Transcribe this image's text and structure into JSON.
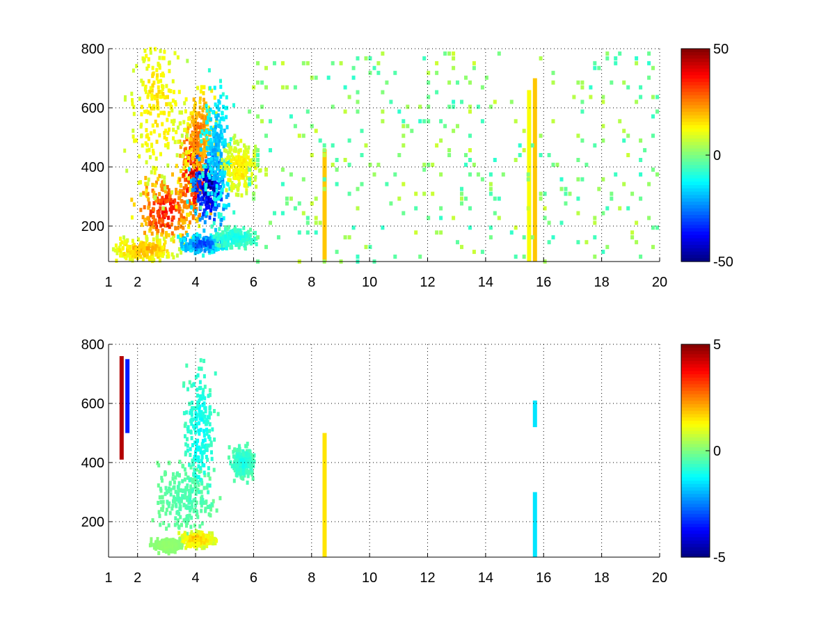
{
  "chart_data": [
    {
      "type": "heatmap",
      "title": "",
      "xlabel": "",
      "ylabel": "",
      "xlim": [
        1,
        20
      ],
      "ylim": [
        80,
        800
      ],
      "grid": true,
      "x_ticks": [
        1,
        2,
        4,
        6,
        8,
        10,
        12,
        14,
        16,
        18,
        20
      ],
      "y_ticks": [
        200,
        400,
        600,
        800
      ],
      "colormap": "jet",
      "colorbar": {
        "range": [
          -50,
          50
        ],
        "ticks": [
          -50,
          0,
          50
        ]
      },
      "features": [
        {
          "kind": "blob",
          "x": 2.9,
          "y": 250,
          "sx": 0.55,
          "sy": 60,
          "value": 35
        },
        {
          "kind": "blob",
          "x": 3.9,
          "y": 380,
          "sx": 0.3,
          "sy": 90,
          "value": 40
        },
        {
          "kind": "blob",
          "x": 4.1,
          "y": 500,
          "sx": 0.3,
          "sy": 110,
          "value": 25
        },
        {
          "kind": "blob",
          "x": 4.4,
          "y": 330,
          "sx": 0.35,
          "sy": 70,
          "value": -45
        },
        {
          "kind": "blob",
          "x": 4.7,
          "y": 450,
          "sx": 0.3,
          "sy": 130,
          "value": -20
        },
        {
          "kind": "blob",
          "x": 5.5,
          "y": 400,
          "sx": 0.35,
          "sy": 50,
          "value": 15
        },
        {
          "kind": "blob",
          "x": 2.6,
          "y": 600,
          "sx": 0.55,
          "sy": 170,
          "value": 15
        },
        {
          "kind": "blob",
          "x": 2.2,
          "y": 120,
          "sx": 0.6,
          "sy": 25,
          "value": 20
        },
        {
          "kind": "blob",
          "x": 4.2,
          "y": 140,
          "sx": 0.45,
          "sy": 18,
          "value": -30
        },
        {
          "kind": "blob",
          "x": 5.3,
          "y": 160,
          "sx": 0.4,
          "sy": 18,
          "value": -12
        },
        {
          "kind": "band",
          "x": 8.45,
          "y0": 80,
          "y1": 460,
          "value": 18
        },
        {
          "kind": "band",
          "x": 15.5,
          "y0": 80,
          "y1": 660,
          "value": 12
        },
        {
          "kind": "band",
          "x": 15.7,
          "y0": 80,
          "y1": 700,
          "value": 18
        },
        {
          "kind": "scatter",
          "x0": 5.8,
          "x1": 20,
          "density": 0.09,
          "value_range": [
            -8,
            8
          ]
        }
      ]
    },
    {
      "type": "heatmap",
      "title": "",
      "xlabel": "",
      "ylabel": "",
      "xlim": [
        1,
        20
      ],
      "ylim": [
        80,
        800
      ],
      "grid": true,
      "x_ticks": [
        1,
        2,
        4,
        6,
        8,
        10,
        12,
        14,
        16,
        18,
        20
      ],
      "y_ticks": [
        200,
        400,
        600,
        800
      ],
      "colormap": "jet",
      "colorbar": {
        "range": [
          -5,
          5
        ],
        "ticks": [
          -5,
          0,
          5
        ]
      },
      "features": [
        {
          "kind": "blob",
          "x": 3.6,
          "y": 280,
          "sx": 0.55,
          "sy": 70,
          "value": -0.5
        },
        {
          "kind": "blob",
          "x": 4.1,
          "y": 500,
          "sx": 0.3,
          "sy": 140,
          "value": -1.2
        },
        {
          "kind": "blob",
          "x": 5.6,
          "y": 400,
          "sx": 0.25,
          "sy": 30,
          "value": -1.0
        },
        {
          "kind": "blob",
          "x": 4.0,
          "y": 140,
          "sx": 0.35,
          "sy": 15,
          "value": 1.8
        },
        {
          "kind": "blob",
          "x": 3.0,
          "y": 120,
          "sx": 0.3,
          "sy": 12,
          "value": 0.2
        },
        {
          "kind": "band",
          "x": 8.45,
          "y0": 80,
          "y1": 500,
          "value": 1.5
        },
        {
          "kind": "band",
          "x": 15.7,
          "y0": 80,
          "y1": 300,
          "value": -1.5
        },
        {
          "kind": "band",
          "x": 15.7,
          "y0": 520,
          "y1": 610,
          "value": -1.5
        },
        {
          "kind": "band",
          "x": 1.45,
          "y0": 410,
          "y1": 760,
          "value": 4.5
        },
        {
          "kind": "band",
          "x": 1.65,
          "y0": 500,
          "y1": 750,
          "value": -3.5
        }
      ]
    }
  ]
}
